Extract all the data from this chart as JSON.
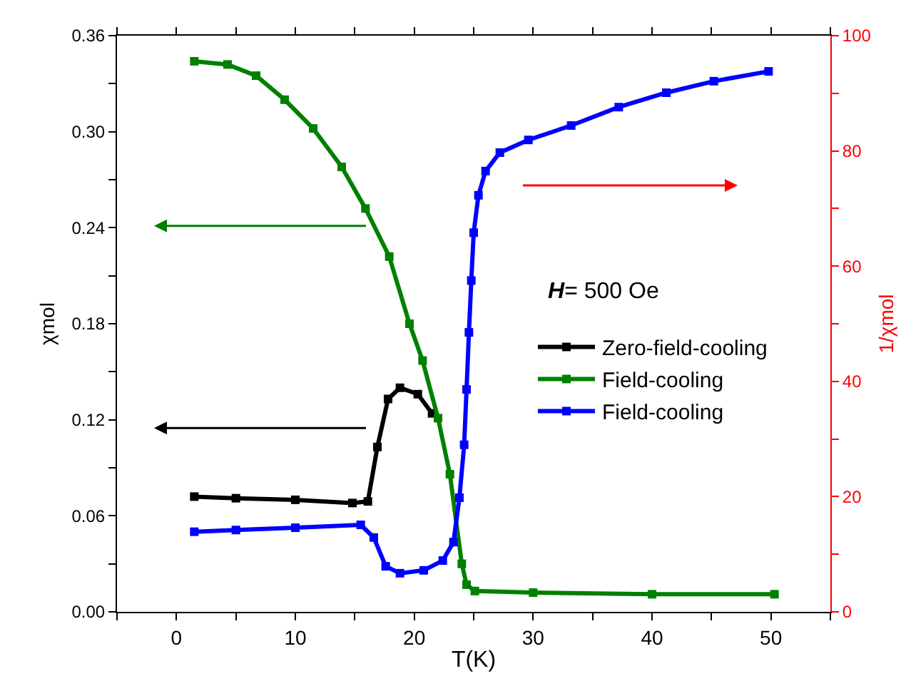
{
  "chart_data": {
    "type": "line",
    "xlabel": "T(K)",
    "ylabel": "χmol",
    "y2label": "1/χmol",
    "xlim": [
      -5,
      55
    ],
    "xticks": [
      {
        "value": -5,
        "label": null
      },
      0,
      {
        "value": 5,
        "label": null
      },
      10,
      {
        "value": 15,
        "label": null
      },
      20,
      {
        "value": 25,
        "label": null
      },
      30,
      {
        "value": 35,
        "label": null
      },
      40,
      {
        "value": 45,
        "label": null
      },
      50,
      {
        "value": 55,
        "label": null
      }
    ],
    "ylim": [
      0,
      0.36
    ],
    "yticks": [
      {
        "value": 0,
        "label": "0.00"
      },
      {
        "value": 0.03,
        "label": null
      },
      {
        "value": 0.06,
        "label": "0.06"
      },
      {
        "value": 0.09,
        "label": null
      },
      {
        "value": 0.12,
        "label": "0.12"
      },
      {
        "value": 0.15,
        "label": null
      },
      {
        "value": 0.18,
        "label": "0.18"
      },
      {
        "value": 0.21,
        "label": null
      },
      {
        "value": 0.24,
        "label": "0.24"
      },
      {
        "value": 0.27,
        "label": null
      },
      {
        "value": 0.3,
        "label": "0.30"
      },
      {
        "value": 0.33,
        "label": null
      },
      {
        "value": 0.36,
        "label": "0.36"
      }
    ],
    "y2lim": [
      0,
      100
    ],
    "y2ticks": [
      0,
      {
        "value": 10,
        "label": null
      },
      20,
      {
        "value": 30,
        "label": null
      },
      40,
      {
        "value": 50,
        "label": null
      },
      60,
      {
        "value": 70,
        "label": null
      },
      80,
      {
        "value": 90,
        "label": null
      },
      100
    ],
    "annotations": [
      "H= 500 Oe"
    ],
    "legend": "right",
    "marker": "square",
    "grid": false,
    "series": [
      {
        "name": "Zero-field-cooling",
        "color": "#000000",
        "x": [
          1.5,
          5,
          10,
          14.8,
          16.1,
          16.9,
          17.8,
          18.8,
          20.3,
          21.5
        ],
        "values": [
          0.072,
          0.071,
          0.07,
          0.068,
          0.069,
          0.103,
          0.133,
          0.14,
          0.136,
          0.124
        ]
      },
      {
        "name": "Field-cooling",
        "color": "#008000",
        "x": [
          1.5,
          4.3,
          6.7,
          9.1,
          11.5,
          13.9,
          15.9,
          17.9,
          19.6,
          20.7,
          22,
          23,
          24,
          24.4,
          25.1,
          30,
          40,
          50.3
        ],
        "values": [
          0.344,
          0.342,
          0.335,
          0.32,
          0.302,
          0.278,
          0.252,
          0.222,
          0.18,
          0.157,
          0.121,
          0.086,
          0.03,
          0.017,
          0.013,
          0.012,
          0.011,
          0.011
        ]
      },
      {
        "name": "Field-cooling",
        "color": "#0000ff",
        "axis": "y2",
        "x": [
          1.5,
          5,
          10,
          15.5,
          16.6,
          17.6,
          18.8,
          20.8,
          22.4,
          23.3,
          23.8,
          24.2,
          24.4,
          24.6,
          24.8,
          25,
          25.4,
          26,
          27.2,
          29.6,
          33.2,
          37.2,
          41.2,
          45.2,
          49.8
        ],
        "values": [
          13.9,
          14.2,
          14.6,
          15.1,
          12.9,
          7.9,
          6.7,
          7.2,
          8.9,
          12.1,
          19.8,
          29,
          38.6,
          48.5,
          57.5,
          65.8,
          72.3,
          76.5,
          79.7,
          81.9,
          84.4,
          87.6,
          90.1,
          92.1,
          93.8
        ]
      }
    ]
  }
}
